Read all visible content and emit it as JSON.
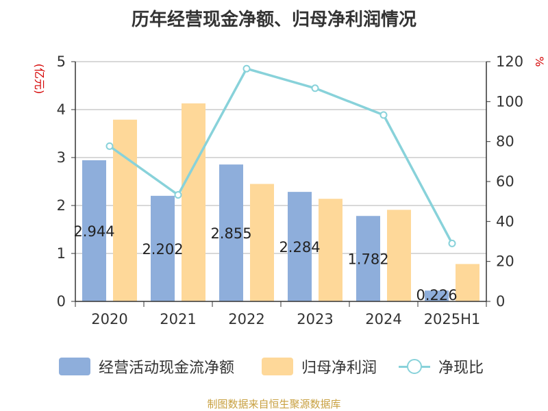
{
  "title": "历年经营现金净额、归母净利润情况",
  "left_unit": "(亿元)",
  "right_unit": "%",
  "source": "制图数据来自恒生聚源数据库",
  "colors": {
    "cash_bar": "#8eaedb",
    "profit_bar": "#fed899",
    "ratio_line": "#88d2da",
    "unit_text": "#d40000",
    "grid": "#cccccc",
    "axis": "#333333"
  },
  "legend": {
    "cash": "经营活动现金流净额",
    "profit": "归母净利润",
    "ratio": "净现比"
  },
  "chart_data": {
    "type": "bar",
    "title": "历年经营现金净额、归母净利润情况",
    "categories": [
      "2020",
      "2021",
      "2022",
      "2023",
      "2024",
      "2025H1"
    ],
    "series": [
      {
        "name": "经营活动现金流净额",
        "type": "bar",
        "axis": "left",
        "values": [
          2.944,
          2.202,
          2.855,
          2.284,
          1.782,
          0.226
        ],
        "labels": [
          "2.944",
          "2.202",
          "2.855",
          "2.284",
          "1.782",
          "0.226"
        ]
      },
      {
        "name": "归母净利润",
        "type": "bar",
        "axis": "left",
        "values": [
          3.79,
          4.13,
          2.45,
          2.14,
          1.91,
          0.78
        ]
      },
      {
        "name": "净现比",
        "type": "line",
        "axis": "right",
        "values": [
          77.7,
          53.3,
          116.5,
          106.7,
          93.3,
          29.0
        ]
      }
    ],
    "left_axis": {
      "ylim": [
        0,
        5
      ],
      "ticks": [
        "0",
        "1",
        "2",
        "3",
        "4",
        "5"
      ],
      "unit": "(亿元)"
    },
    "right_axis": {
      "ylim": [
        0,
        120
      ],
      "ticks": [
        "0",
        "20",
        "40",
        "60",
        "80",
        "100",
        "120"
      ],
      "unit": "%"
    },
    "grid": true,
    "legend_position": "bottom"
  }
}
